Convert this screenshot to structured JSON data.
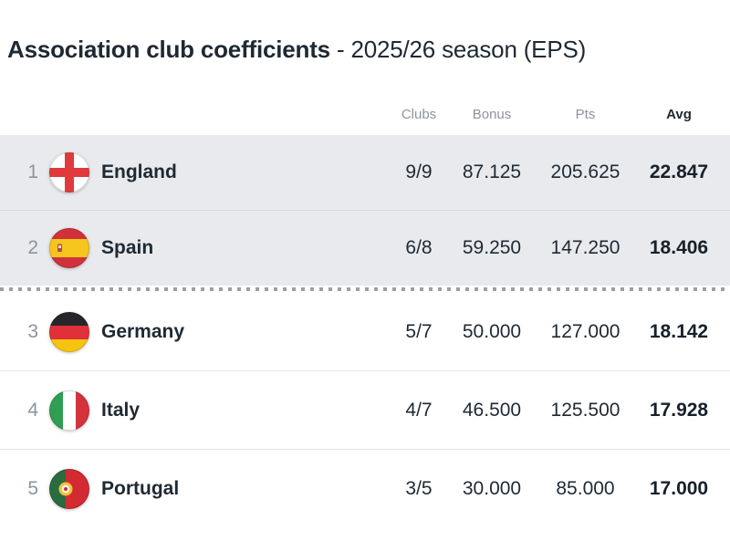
{
  "title": {
    "main": "Association club coefficients",
    "suffix": " - 2025/26 season (EPS)"
  },
  "table": {
    "columns": {
      "clubs": "Clubs",
      "bonus": "Bonus",
      "pts": "Pts",
      "avg": "Avg"
    },
    "rows": [
      {
        "rank": "1",
        "country": "England",
        "flag": "england-flag-icon",
        "clubs": "9/9",
        "bonus": "87.125",
        "pts": "205.625",
        "avg": "22.847",
        "highlight": true
      },
      {
        "rank": "2",
        "country": "Spain",
        "flag": "spain-flag-icon",
        "clubs": "6/8",
        "bonus": "59.250",
        "pts": "147.250",
        "avg": "18.406",
        "highlight": true
      },
      {
        "rank": "3",
        "country": "Germany",
        "flag": "germany-flag-icon",
        "clubs": "5/7",
        "bonus": "50.000",
        "pts": "127.000",
        "avg": "18.142",
        "highlight": false
      },
      {
        "rank": "4",
        "country": "Italy",
        "flag": "italy-flag-icon",
        "clubs": "4/7",
        "bonus": "46.500",
        "pts": "125.500",
        "avg": "17.928",
        "highlight": false
      },
      {
        "rank": "5",
        "country": "Portugal",
        "flag": "portugal-flag-icon",
        "clubs": "3/5",
        "bonus": "30.000",
        "pts": "85.000",
        "avg": "17.000",
        "highlight": false
      }
    ],
    "cutoff_after_rank": 2
  },
  "colors": {
    "text_dark": "#1f2933",
    "text_gray": "#8d949c",
    "highlight_bg": "#e8eaed",
    "dotted": "#98a0a7"
  }
}
